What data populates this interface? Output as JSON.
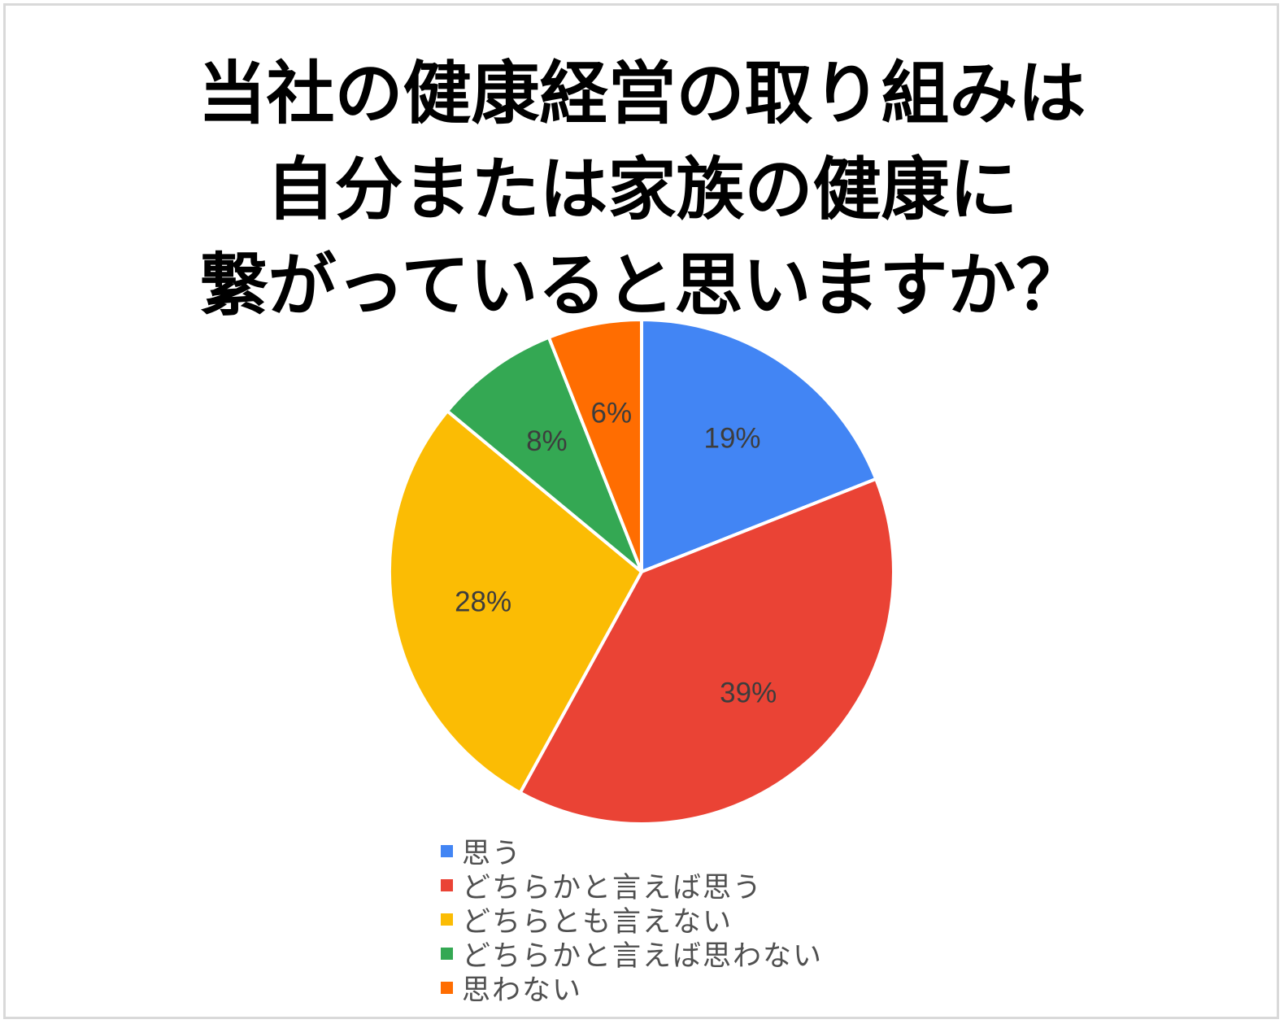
{
  "chart_data": {
    "type": "pie",
    "title_lines": [
      "当社の健康経営の取り組みは",
      "自分または家族の健康に",
      "繋がっていると思いますか？"
    ],
    "categories": [
      "思う",
      "どちらかと言えば思う",
      "どちらとも言えない",
      "どちらかと言えば思わない",
      "思わない"
    ],
    "values": [
      19,
      39,
      28,
      8,
      6
    ],
    "data_labels": [
      "19%",
      "39%",
      "28%",
      "8%",
      "6%"
    ],
    "colors": [
      "#4285f4",
      "#ea4335",
      "#fbbc04",
      "#34a853",
      "#ff6d01"
    ],
    "legend_position": "bottom"
  }
}
